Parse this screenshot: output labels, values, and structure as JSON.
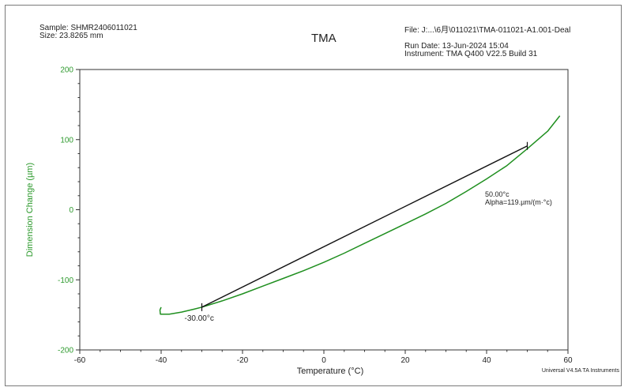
{
  "header": {
    "sample": "Sample: SHMR2406011021",
    "size": "Size:  23.8265 mm",
    "title": "TMA",
    "file": "File: J:...\\6月\\011021\\TMA-011021-A1.001-Deal",
    "run_date": "Run Date: 13-Jun-2024 15:04",
    "instrument": "Instrument: TMA Q400 V22.5 Build 31"
  },
  "footer": {
    "software": "Universal V4.5A TA Instruments"
  },
  "colors": {
    "curve": "#1f8f1f",
    "fit_line": "#111111",
    "ylabel": "#2e9a2e",
    "ytick": "#2e9a2e"
  },
  "chart_data": {
    "type": "line",
    "title": "TMA",
    "xlabel": "Temperature (°C)",
    "ylabel": "Dimension Change (µm)",
    "xlim": [
      -60,
      60
    ],
    "ylim": [
      -200,
      200
    ],
    "xticks": [
      "-60",
      "-40",
      "-20",
      "0",
      "20",
      "40",
      "60"
    ],
    "yticks": [
      "200",
      "100",
      "0",
      "-100",
      "-200"
    ],
    "grid": false,
    "series": [
      {
        "name": "",
        "role": "curve",
        "x": [
          -40,
          -40.3,
          -40.2,
          -39.8,
          -38,
          -35,
          -32,
          -30,
          -25,
          -20,
          -15,
          -10,
          -5,
          0,
          5,
          10,
          15,
          20,
          25,
          30,
          35,
          40,
          45,
          50,
          52,
          55,
          58
        ],
        "y": [
          -139,
          -143,
          -149,
          -149,
          -149,
          -146,
          -142,
          -139,
          -130,
          -120,
          -109,
          -98,
          -87,
          -75,
          -62,
          -48,
          -34,
          -20,
          -6,
          9,
          26,
          44,
          63,
          87,
          97,
          112,
          134
        ]
      },
      {
        "name": "",
        "role": "fit",
        "x": [
          -30,
          50
        ],
        "y": [
          -139,
          91
        ]
      }
    ],
    "annotations": [
      {
        "label": "-30.00°c",
        "x": -30,
        "y": -139
      },
      {
        "label": "50.00°c",
        "x": 50,
        "y": 91
      },
      {
        "label": "Alpha=119.µm/(m·°c)",
        "x": 50,
        "y": 91
      }
    ]
  }
}
